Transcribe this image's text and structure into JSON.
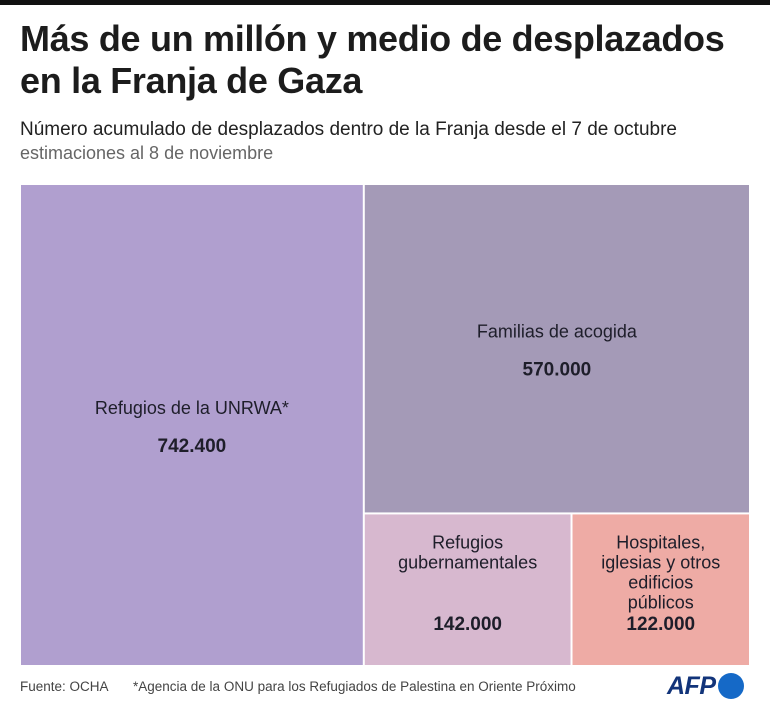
{
  "title": "Más de un millón y medio de desplazados en la Franja de Gaza",
  "subtitle": "Número acumulado de desplazados dentro de la Franja desde el 7 de octubre",
  "subtitle2": "estimaciones al 8 de noviembre",
  "chart_data": {
    "type": "treemap",
    "title": "Más de un millón y medio de desplazados en la Franja de Gaza",
    "unit": "personas desplazadas",
    "items": [
      {
        "label": "Refugios de la UNRWA*",
        "value": 742400,
        "value_label": "742.400",
        "color": "#b09fcf"
      },
      {
        "label": "Familias de acogida",
        "value": 570000,
        "value_label": "570.000",
        "color": "#a49ab7"
      },
      {
        "label": "Refugios gubernamentales",
        "value": 142000,
        "value_label": "142.000",
        "color": "#d7b8cf"
      },
      {
        "label": "Hospitales, iglesias y otros edificios públicos",
        "value": 122000,
        "value_label": "122.000",
        "color": "#eeaba5"
      }
    ]
  },
  "footer": {
    "source": "Fuente: OCHA",
    "note": "*Agencia de la ONU para los Refugiados de Palestina en Oriente Próximo",
    "logo_text": "AFP"
  }
}
